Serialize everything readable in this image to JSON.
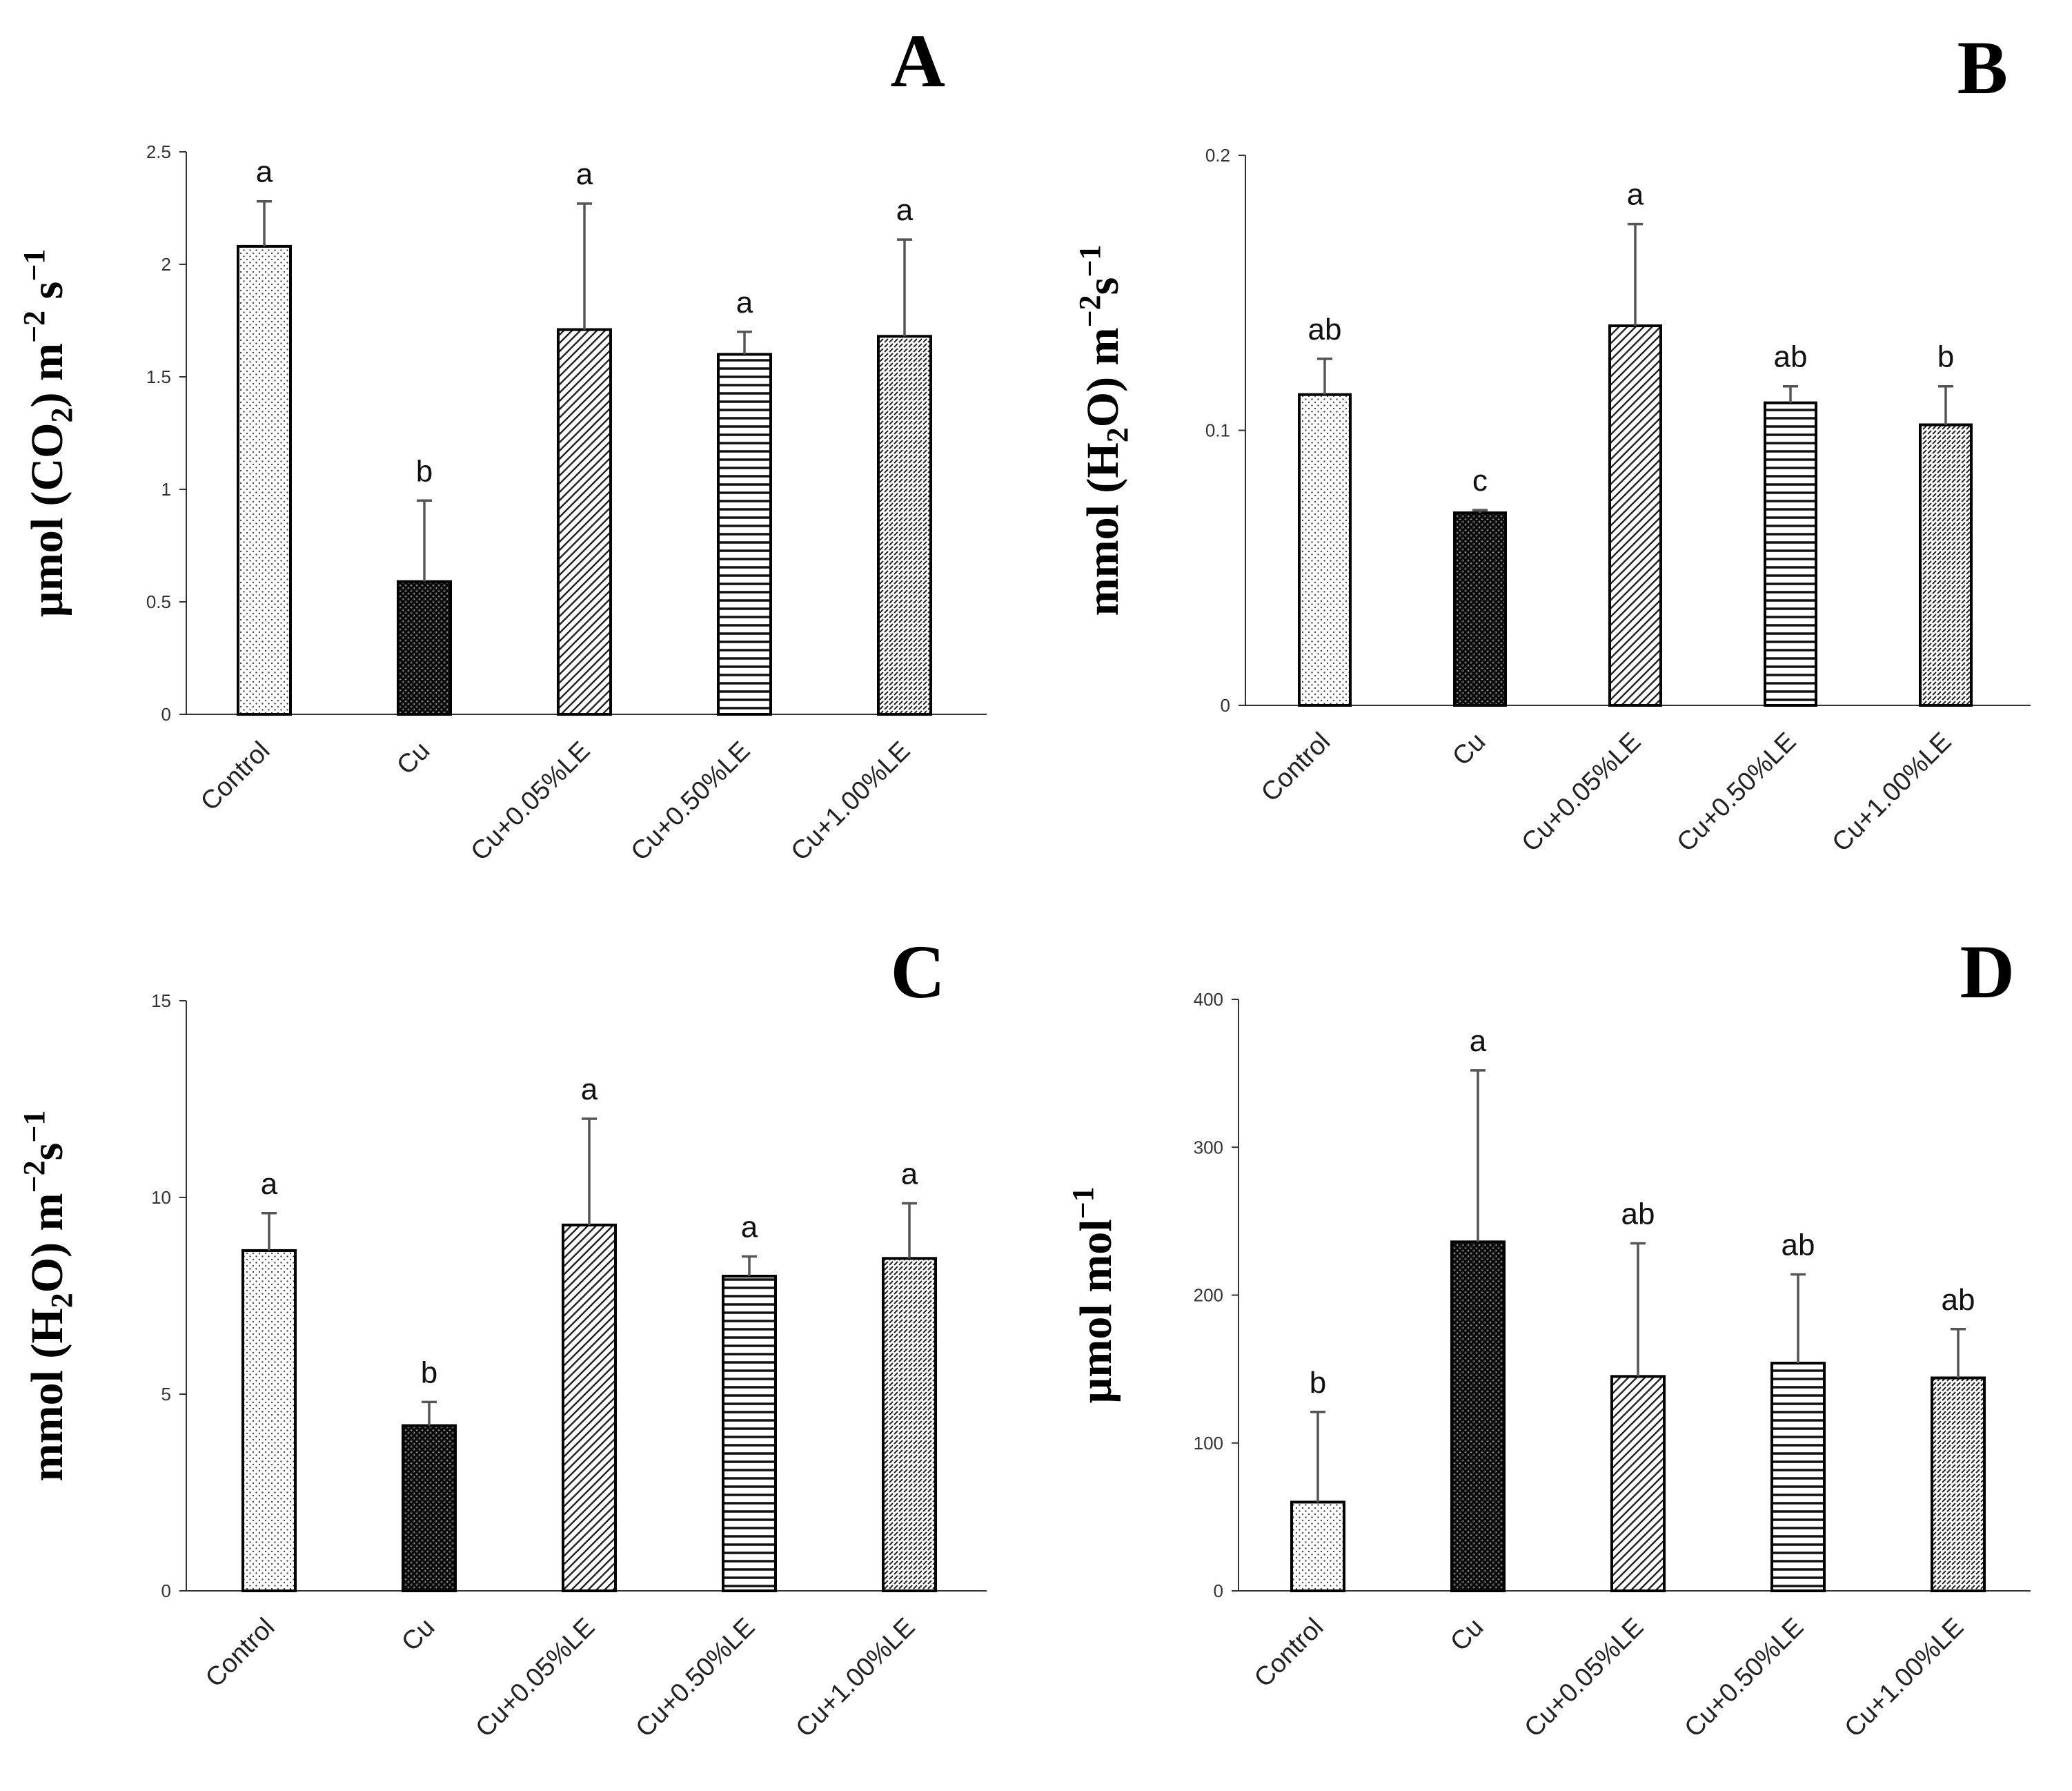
{
  "figure": {
    "categories": [
      "Control",
      "Cu",
      "Cu+0.05%LE",
      "Cu+0.50%LE",
      "Cu+1.00%LE"
    ]
  },
  "chart_data": [
    {
      "type": "bar",
      "panel_label": "A",
      "ylabel": {
        "parts": [
          "µmol (CO",
          "2",
          ") m",
          "−2",
          " s",
          "−1"
        ]
      },
      "ylim": [
        0,
        2.5
      ],
      "yticks": [
        0,
        0.5,
        1,
        1.5,
        2,
        2.5
      ],
      "ytick_labels": [
        "0",
        "0.5",
        "1",
        "1.5",
        "2",
        "2.5"
      ],
      "categories": [
        "Control",
        "Cu",
        "Cu+0.05%LE",
        "Cu+0.50%LE",
        "Cu+1.00%LE"
      ],
      "values": [
        2.08,
        0.59,
        1.71,
        1.6,
        1.68
      ],
      "errors": [
        0.2,
        0.36,
        0.56,
        0.1,
        0.43
      ],
      "significance": [
        "a",
        "b",
        "a",
        "a",
        "a"
      ]
    },
    {
      "type": "bar",
      "panel_label": "B",
      "ylabel": {
        "parts": [
          "mmol (H",
          "2",
          "O) m",
          "−2",
          "s",
          "−1"
        ]
      },
      "ylim": [
        0,
        0.2
      ],
      "yticks": [
        0,
        0.1,
        0.2
      ],
      "ytick_labels": [
        "0",
        "0.1",
        "0.2"
      ],
      "categories": [
        "Control",
        "Cu",
        "Cu+0.05%LE",
        "Cu+0.50%LE",
        "Cu+1.00%LE"
      ],
      "values": [
        0.113,
        0.07,
        0.138,
        0.11,
        0.102
      ],
      "errors": [
        0.013,
        0.001,
        0.037,
        0.006,
        0.014
      ],
      "significance": [
        "ab",
        "c",
        "a",
        "ab",
        "b"
      ]
    },
    {
      "type": "bar",
      "panel_label": "C",
      "ylabel": {
        "parts": [
          "mmol (H",
          "2",
          "O) m",
          "−2",
          "s",
          "−1"
        ]
      },
      "ylim": [
        0,
        15
      ],
      "yticks": [
        0,
        5,
        10,
        15
      ],
      "ytick_labels": [
        "0",
        "5",
        "10",
        "15"
      ],
      "categories": [
        "Control",
        "Cu",
        "Cu+0.05%LE",
        "Cu+0.50%LE",
        "Cu+1.00%LE"
      ],
      "values": [
        8.65,
        4.2,
        9.3,
        8.0,
        8.45
      ],
      "errors": [
        0.95,
        0.6,
        2.7,
        0.5,
        1.4
      ],
      "significance": [
        "a",
        "b",
        "a",
        "a",
        "a"
      ]
    },
    {
      "type": "bar",
      "panel_label": "D",
      "ylabel": {
        "parts": [
          "µmol mol",
          "",
          "",
          "−1",
          "",
          ""
        ]
      },
      "ylim": [
        0,
        400
      ],
      "yticks": [
        0,
        100,
        200,
        300,
        400
      ],
      "ytick_labels": [
        "0",
        "100",
        "200",
        "300",
        "400"
      ],
      "categories": [
        "Control",
        "Cu",
        "Cu+0.05%LE",
        "Cu+0.50%LE",
        "Cu+1.00%LE"
      ],
      "values": [
        60,
        236,
        145,
        154,
        144
      ],
      "errors": [
        61,
        116,
        90,
        60,
        33
      ],
      "significance": [
        "b",
        "a",
        "ab",
        "ab",
        "ab"
      ]
    }
  ]
}
